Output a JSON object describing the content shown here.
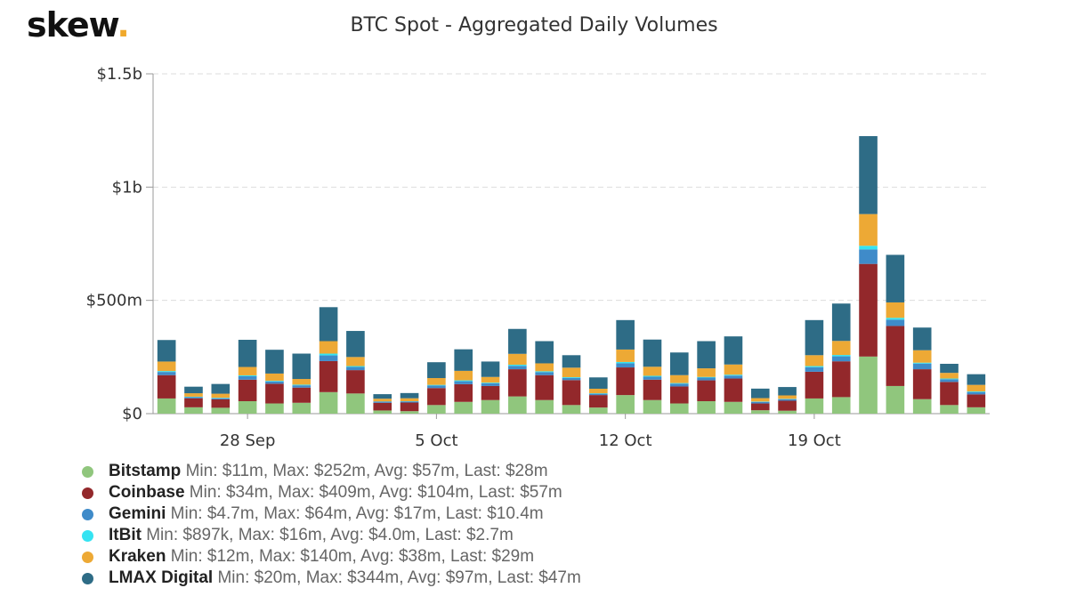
{
  "logo": {
    "text": "skew",
    "dot": "."
  },
  "chart_data": {
    "type": "bar",
    "stacked": true,
    "title": "BTC Spot - Aggregated Daily Volumes",
    "ylim": [
      0,
      1500
    ],
    "y_unit": "$m",
    "yticks": [
      {
        "value": 0,
        "label": "$0"
      },
      {
        "value": 500,
        "label": "$500m"
      },
      {
        "value": 1000,
        "label": "$1b"
      },
      {
        "value": 1500,
        "label": "$1.5b"
      }
    ],
    "x_ticks": [
      {
        "category": "2020-09-28",
        "label": "28 Sep"
      },
      {
        "category": "2020-10-05",
        "label": "5 Oct"
      },
      {
        "category": "2020-10-12",
        "label": "12 Oct"
      },
      {
        "category": "2020-10-19",
        "label": "19 Oct"
      }
    ],
    "grid": true,
    "legend_position": "bottom-left",
    "categories": [
      "2020-09-25",
      "2020-09-26",
      "2020-09-27",
      "2020-09-28",
      "2020-09-29",
      "2020-09-30",
      "2020-10-01",
      "2020-10-02",
      "2020-10-03",
      "2020-10-04",
      "2020-10-05",
      "2020-10-06",
      "2020-10-07",
      "2020-10-08",
      "2020-10-09",
      "2020-10-10",
      "2020-10-11",
      "2020-10-12",
      "2020-10-13",
      "2020-10-14",
      "2020-10-15",
      "2020-10-16",
      "2020-10-17",
      "2020-10-18",
      "2020-10-19",
      "2020-10-20",
      "2020-10-21",
      "2020-10-22",
      "2020-10-23",
      "2020-10-24",
      "2020-10-25"
    ],
    "series": [
      {
        "name": "Bitstamp",
        "color": "#90c67d",
        "stats": "Min: $11m, Max: $252m, Avg: $57m, Last: $28m",
        "values": [
          67,
          28,
          26,
          55,
          45,
          48,
          95,
          89,
          14,
          11,
          38,
          52,
          60,
          76,
          60,
          38,
          27,
          82,
          60,
          45,
          55,
          52,
          15,
          13,
          67,
          73,
          252,
          122,
          64,
          38,
          28
        ]
      },
      {
        "name": "Coinbase",
        "color": "#93282b",
        "stats": "Min: $34m, Max: $409m, Avg: $104m, Last: $57m",
        "values": [
          103,
          40,
          37,
          95,
          87,
          67,
          137,
          103,
          34,
          38,
          75,
          78,
          62,
          120,
          110,
          110,
          55,
          122,
          90,
          75,
          92,
          103,
          30,
          44,
          118,
          158,
          409,
          265,
          132,
          102,
          57
        ]
      },
      {
        "name": "Gemini",
        "color": "#3f8bc9",
        "stats": "Min: $4.7m, Max: $64m, Avg: $17m, Last: $10.4m",
        "values": [
          14,
          5,
          5,
          15,
          10,
          10,
          25,
          14,
          5,
          5,
          11,
          13,
          12,
          15,
          13,
          10,
          6,
          18,
          13,
          12,
          12,
          13,
          7,
          7,
          20,
          22,
          64,
          28,
          25,
          12,
          10.4
        ]
      },
      {
        "name": "ItBit",
        "color": "#35e3f2",
        "stats": "Min: $897k, Max: $16m, Avg: $4.0m, Last: $2.7m",
        "values": [
          4,
          2,
          2,
          4,
          3,
          3,
          8,
          4,
          1,
          0.9,
          3,
          4,
          3,
          5,
          4,
          3,
          2,
          6,
          4,
          3,
          3,
          4,
          1.5,
          1.5,
          5,
          6,
          16,
          8,
          4,
          3,
          2.7
        ]
      },
      {
        "name": "Kraken",
        "color": "#eda935",
        "stats": "Min: $12m, Max: $140m, Avg: $38m, Last: $29m",
        "values": [
          42,
          15,
          18,
          37,
          32,
          25,
          55,
          40,
          12,
          13,
          30,
          42,
          25,
          48,
          35,
          42,
          20,
          55,
          40,
          35,
          38,
          45,
          15,
          15,
          48,
          62,
          140,
          68,
          55,
          25,
          29
        ]
      },
      {
        "name": "LMAX Digital",
        "color": "#2e6c86",
        "stats": "Min: $20m, Max: $344m, Avg: $97m, Last: $47m",
        "values": [
          95,
          29,
          43,
          120,
          105,
          112,
          150,
          115,
          20,
          23,
          70,
          95,
          68,
          110,
          98,
          55,
          50,
          130,
          120,
          100,
          120,
          124,
          42,
          37,
          155,
          165,
          344,
          210,
          100,
          40,
          47
        ]
      }
    ]
  }
}
